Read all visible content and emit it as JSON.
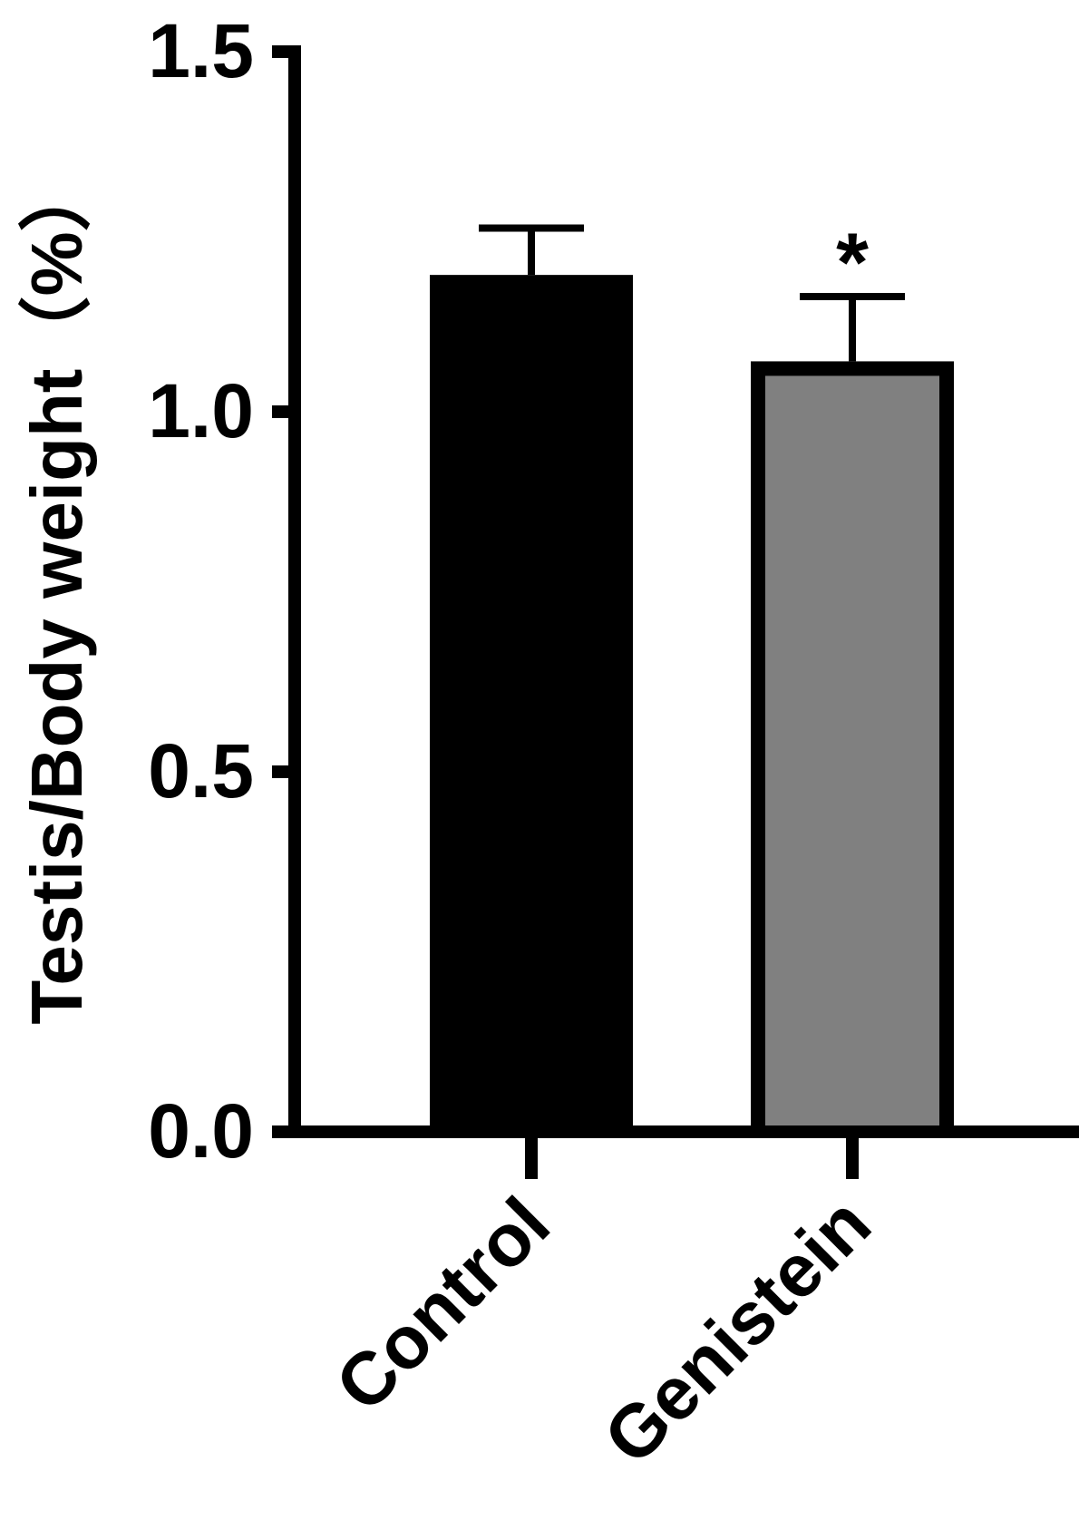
{
  "chart_data": {
    "type": "bar",
    "ylabel": "Testis/Body weight（%）",
    "ylim": [
      0,
      1.5
    ],
    "yticks": [
      0.0,
      0.5,
      1.0,
      1.5
    ],
    "ytick_labels": [
      "0.0",
      "0.5",
      "1.0",
      "1.5"
    ],
    "categories": [
      "Control",
      "Genistein"
    ],
    "values": [
      1.19,
      1.07
    ],
    "errors": [
      0.065,
      0.09
    ],
    "annotations": [
      "",
      "*"
    ],
    "bar_colors": [
      "#000000",
      "#808080"
    ],
    "bar_edge_color": "#000000",
    "grid": false,
    "legend": "none"
  }
}
